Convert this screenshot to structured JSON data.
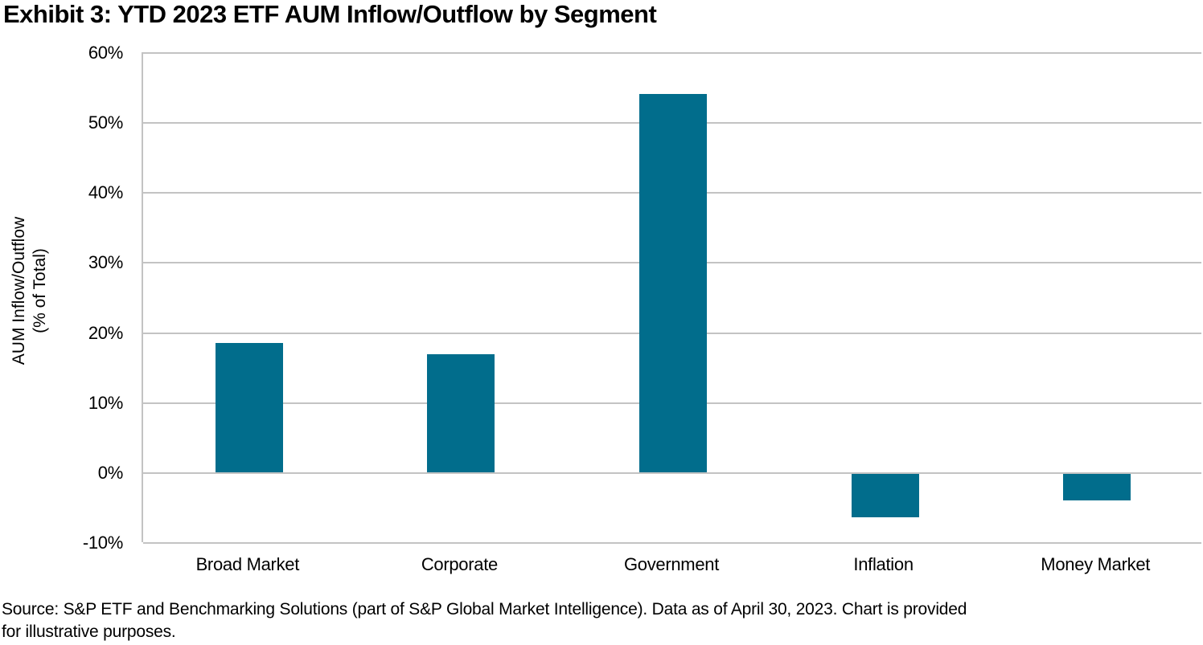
{
  "title": "Exhibit 3: YTD 2023 ETF AUM Inflow/Outflow by Segment",
  "source_lines": [
    "Source: S&P ETF and Benchmarking Solutions (part of S&P Global Market Intelligence). Data as of April 30, 2023. Chart is provided",
    "for illustrative purposes."
  ],
  "chart_data": {
    "type": "bar",
    "title": "Exhibit 3: YTD 2023 ETF AUM Inflow/Outflow by Segment",
    "categories": [
      "Broad Market",
      "Corporate",
      "Government",
      "Inflation",
      "Money Market"
    ],
    "values": [
      18.5,
      16.8,
      54,
      -6.4,
      -4
    ],
    "xlabel": "",
    "ylabel": "AUM Inflow/Outflow (% of Total)",
    "ylabel_lines": [
      "AUM Inflow/Outflow",
      "(% of Total)"
    ],
    "ylim": [
      -10,
      60
    ],
    "yticks": [
      {
        "value": 60,
        "label": "60%"
      },
      {
        "value": 50,
        "label": "50%"
      },
      {
        "value": 40,
        "label": "40%"
      },
      {
        "value": 30,
        "label": "30%"
      },
      {
        "value": 20,
        "label": "20%"
      },
      {
        "value": 10,
        "label": "10%"
      },
      {
        "value": 0,
        "label": "0%"
      },
      {
        "value": -10,
        "label": "-10%"
      }
    ],
    "grid": true,
    "legend": "none",
    "bar_color": "#016D8C",
    "gridline_color": "#C3C3C3",
    "background_color": "#FFFFFF",
    "text_color": "#000000"
  }
}
